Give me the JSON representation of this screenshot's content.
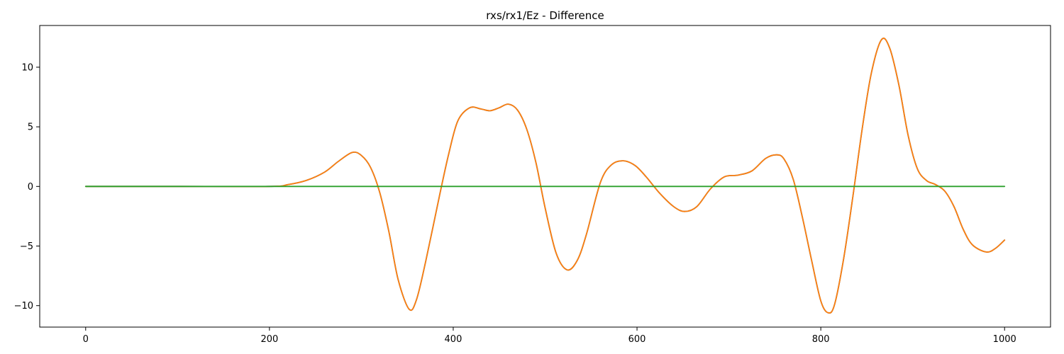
{
  "chart_data": {
    "type": "line",
    "title": "rxs/rx1/Ez - Difference",
    "xlabel": "",
    "ylabel": "",
    "xlim": [
      -50,
      1050
    ],
    "ylim": [
      -11.8,
      13.5
    ],
    "x_ticks": [
      0,
      200,
      400,
      600,
      800,
      1000
    ],
    "y_ticks": [
      10,
      5,
      0,
      -5,
      -10
    ],
    "x_tick_labels": [
      "0",
      "200",
      "400",
      "600",
      "800",
      "1000"
    ],
    "y_tick_labels": [
      "10",
      "5",
      "0",
      "−5",
      "−10"
    ],
    "grid": false,
    "legend": "none",
    "series": [
      {
        "color": "#1f77b4",
        "x": [
          0,
          100,
          200,
          220,
          240,
          260,
          275,
          290,
          300,
          310,
          320,
          330,
          340,
          352,
          360,
          370,
          385,
          395,
          405,
          418,
          430,
          440,
          450,
          460,
          470,
          480,
          490,
          500,
          512,
          524,
          535,
          545,
          560,
          572,
          585,
          598,
          610,
          625,
          640,
          652,
          665,
          680,
          695,
          710,
          725,
          740,
          752,
          760,
          770,
          780,
          790,
          800,
          808,
          815,
          825,
          835,
          845,
          855,
          866,
          875,
          885,
          895,
          905,
          915,
          925,
          935,
          945,
          955,
          965,
          980,
          990,
          1000
        ],
        "y": [
          0,
          0,
          0,
          0.15,
          0.5,
          1.2,
          2.1,
          2.85,
          2.6,
          1.6,
          -0.5,
          -3.8,
          -7.8,
          -10.3,
          -9.5,
          -6.3,
          -0.8,
          2.7,
          5.5,
          6.6,
          6.5,
          6.35,
          6.6,
          6.9,
          6.4,
          4.8,
          2.0,
          -1.8,
          -5.6,
          -7.0,
          -6.2,
          -4.0,
          0.3,
          1.8,
          2.15,
          1.75,
          0.8,
          -0.6,
          -1.7,
          -2.1,
          -1.7,
          -0.2,
          0.8,
          0.95,
          1.3,
          2.35,
          2.65,
          2.3,
          0.6,
          -2.6,
          -6.2,
          -9.6,
          -10.6,
          -9.9,
          -6.0,
          -0.8,
          4.8,
          9.5,
          12.3,
          11.6,
          8.5,
          4.3,
          1.5,
          0.5,
          0.15,
          -0.4,
          -1.7,
          -3.6,
          -4.9,
          -5.5,
          -5.2,
          -4.5
        ]
      },
      {
        "color": "#ff7f0e",
        "x": [
          0,
          100,
          200,
          220,
          240,
          260,
          275,
          290,
          300,
          310,
          320,
          330,
          340,
          352,
          360,
          370,
          385,
          395,
          405,
          418,
          430,
          440,
          450,
          460,
          470,
          480,
          490,
          500,
          512,
          524,
          535,
          545,
          560,
          572,
          585,
          598,
          610,
          625,
          640,
          652,
          665,
          680,
          695,
          710,
          725,
          740,
          752,
          760,
          770,
          780,
          790,
          800,
          808,
          815,
          825,
          835,
          845,
          855,
          866,
          875,
          885,
          895,
          905,
          915,
          925,
          935,
          945,
          955,
          965,
          980,
          990,
          1000
        ],
        "y": [
          0,
          0,
          0,
          0.15,
          0.5,
          1.2,
          2.1,
          2.85,
          2.6,
          1.6,
          -0.5,
          -3.8,
          -7.8,
          -10.3,
          -9.5,
          -6.3,
          -0.8,
          2.7,
          5.5,
          6.6,
          6.5,
          6.35,
          6.6,
          6.9,
          6.4,
          4.8,
          2.0,
          -1.8,
          -5.6,
          -7.0,
          -6.2,
          -4.0,
          0.3,
          1.8,
          2.15,
          1.75,
          0.8,
          -0.6,
          -1.7,
          -2.1,
          -1.7,
          -0.2,
          0.8,
          0.95,
          1.3,
          2.35,
          2.65,
          2.3,
          0.6,
          -2.6,
          -6.2,
          -9.6,
          -10.6,
          -9.9,
          -6.0,
          -0.8,
          4.8,
          9.5,
          12.3,
          11.6,
          8.5,
          4.3,
          1.5,
          0.5,
          0.15,
          -0.4,
          -1.7,
          -3.6,
          -4.9,
          -5.5,
          -5.2,
          -4.5
        ]
      },
      {
        "color": "#2ca02c",
        "x": [
          0,
          1000
        ],
        "y": [
          0,
          0
        ]
      }
    ]
  }
}
